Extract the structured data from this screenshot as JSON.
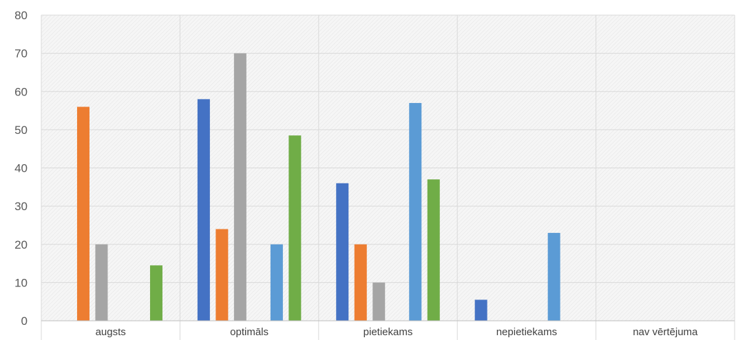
{
  "chart_data": {
    "type": "bar",
    "categories": [
      "augsts",
      "optimāls",
      "pietiekams",
      "nepietiekams",
      "nav vērtējuma"
    ],
    "series": [
      {
        "color": "#4472C4",
        "values": [
          0,
          58,
          36,
          5.5,
          0
        ]
      },
      {
        "color": "#ED7D31",
        "values": [
          56,
          24,
          20,
          0,
          0
        ]
      },
      {
        "color": "#A5A5A5",
        "values": [
          20,
          70,
          10,
          0,
          0
        ]
      },
      {
        "color": "#FFC000",
        "values": [
          0,
          0,
          0,
          0,
          0
        ]
      },
      {
        "color": "#5B9BD5",
        "values": [
          0,
          20,
          57,
          23,
          0
        ]
      },
      {
        "color": "#70AD47",
        "values": [
          14.5,
          48.5,
          37,
          0,
          0
        ]
      }
    ],
    "ylim": [
      0,
      80
    ],
    "yticks": [
      0,
      10,
      20,
      30,
      40,
      50,
      60,
      70,
      80
    ],
    "grid": true
  }
}
